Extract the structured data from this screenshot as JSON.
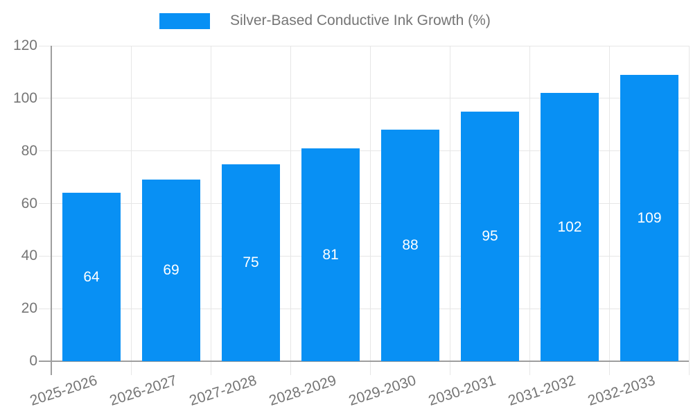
{
  "chart_data": {
    "type": "bar",
    "title": "Silver-Based Conductive Ink Growth (%)",
    "categories": [
      "2025-2026",
      "2026-2027",
      "2027-2028",
      "2028-2029",
      "2029-2030",
      "2030-2031",
      "2031-2032",
      "2032-2033"
    ],
    "values": [
      64,
      69,
      75,
      81,
      88,
      95,
      102,
      109
    ],
    "bar_value_labels": [
      "64",
      "69",
      "75",
      "81",
      "88",
      "95",
      "102",
      "109"
    ],
    "xlabel": "",
    "ylabel": "",
    "ylim": [
      0,
      120
    ],
    "yticks": [
      0,
      20,
      40,
      60,
      80,
      100,
      120
    ],
    "grid": true,
    "legend_position": "top",
    "colors": {
      "bar": "#0890F4",
      "grid": "#E6E6E6",
      "axis": "#9E9E9E",
      "tick_text": "#757575",
      "bar_label_text": "#FFFFFF"
    }
  }
}
